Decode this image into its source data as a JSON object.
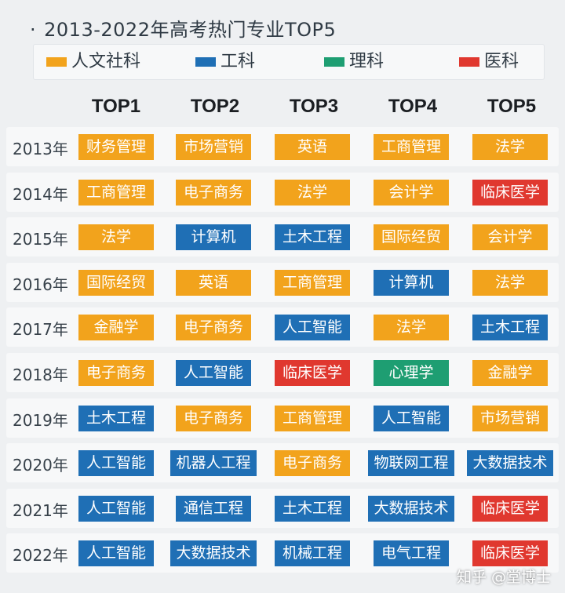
{
  "title": "2013-2022年高考热门专业TOP5",
  "title_bullet": "·",
  "legend": [
    {
      "key": "humanities",
      "label": "人文社科",
      "color": "#f2a31c"
    },
    {
      "key": "engineering",
      "label": "工科",
      "color": "#1f6fb5"
    },
    {
      "key": "science",
      "label": "理科",
      "color": "#1e9e72"
    },
    {
      "key": "medicine",
      "label": "医科",
      "color": "#e0382f"
    }
  ],
  "watermark": "知乎 @堂博士",
  "chart_data": {
    "type": "table",
    "title": "2013-2022年高考热门专业TOP5",
    "columns": [
      "TOP1",
      "TOP2",
      "TOP3",
      "TOP4",
      "TOP5"
    ],
    "rows": [
      {
        "year": "2013年",
        "cells": [
          {
            "text": "财务管理",
            "cat": "humanities"
          },
          {
            "text": "市场营销",
            "cat": "humanities"
          },
          {
            "text": "英语",
            "cat": "humanities"
          },
          {
            "text": "工商管理",
            "cat": "humanities"
          },
          {
            "text": "法学",
            "cat": "humanities"
          }
        ]
      },
      {
        "year": "2014年",
        "cells": [
          {
            "text": "工商管理",
            "cat": "humanities"
          },
          {
            "text": "电子商务",
            "cat": "humanities"
          },
          {
            "text": "法学",
            "cat": "humanities"
          },
          {
            "text": "会计学",
            "cat": "humanities"
          },
          {
            "text": "临床医学",
            "cat": "medicine"
          }
        ]
      },
      {
        "year": "2015年",
        "cells": [
          {
            "text": "法学",
            "cat": "humanities"
          },
          {
            "text": "计算机",
            "cat": "engineering"
          },
          {
            "text": "土木工程",
            "cat": "engineering"
          },
          {
            "text": "国际经贸",
            "cat": "humanities"
          },
          {
            "text": "会计学",
            "cat": "humanities"
          }
        ]
      },
      {
        "year": "2016年",
        "cells": [
          {
            "text": "国际经贸",
            "cat": "humanities"
          },
          {
            "text": "英语",
            "cat": "humanities"
          },
          {
            "text": "工商管理",
            "cat": "humanities"
          },
          {
            "text": "计算机",
            "cat": "engineering"
          },
          {
            "text": "法学",
            "cat": "humanities"
          }
        ]
      },
      {
        "year": "2017年",
        "cells": [
          {
            "text": "金融学",
            "cat": "humanities"
          },
          {
            "text": "电子商务",
            "cat": "humanities"
          },
          {
            "text": "人工智能",
            "cat": "engineering"
          },
          {
            "text": "法学",
            "cat": "humanities"
          },
          {
            "text": "土木工程",
            "cat": "engineering"
          }
        ]
      },
      {
        "year": "2018年",
        "cells": [
          {
            "text": "电子商务",
            "cat": "humanities"
          },
          {
            "text": "人工智能",
            "cat": "engineering"
          },
          {
            "text": "临床医学",
            "cat": "medicine"
          },
          {
            "text": "心理学",
            "cat": "science"
          },
          {
            "text": "金融学",
            "cat": "humanities"
          }
        ]
      },
      {
        "year": "2019年",
        "cells": [
          {
            "text": "土木工程",
            "cat": "engineering"
          },
          {
            "text": "电子商务",
            "cat": "humanities"
          },
          {
            "text": "工商管理",
            "cat": "humanities"
          },
          {
            "text": "人工智能",
            "cat": "engineering"
          },
          {
            "text": "市场营销",
            "cat": "humanities"
          }
        ]
      },
      {
        "year": "2020年",
        "cells": [
          {
            "text": "人工智能",
            "cat": "engineering"
          },
          {
            "text": "机器人工程",
            "cat": "engineering"
          },
          {
            "text": "电子商务",
            "cat": "humanities"
          },
          {
            "text": "物联网工程",
            "cat": "engineering"
          },
          {
            "text": "大数据技术",
            "cat": "engineering"
          }
        ]
      },
      {
        "year": "2021年",
        "cells": [
          {
            "text": "人工智能",
            "cat": "engineering"
          },
          {
            "text": "通信工程",
            "cat": "engineering"
          },
          {
            "text": "土木工程",
            "cat": "engineering"
          },
          {
            "text": "大数据技术",
            "cat": "engineering"
          },
          {
            "text": "临床医学",
            "cat": "medicine"
          }
        ]
      },
      {
        "year": "2022年",
        "cells": [
          {
            "text": "人工智能",
            "cat": "engineering"
          },
          {
            "text": "大数据技术",
            "cat": "engineering"
          },
          {
            "text": "机械工程",
            "cat": "engineering"
          },
          {
            "text": "电气工程",
            "cat": "engineering"
          },
          {
            "text": "临床医学",
            "cat": "medicine"
          }
        ]
      }
    ]
  }
}
